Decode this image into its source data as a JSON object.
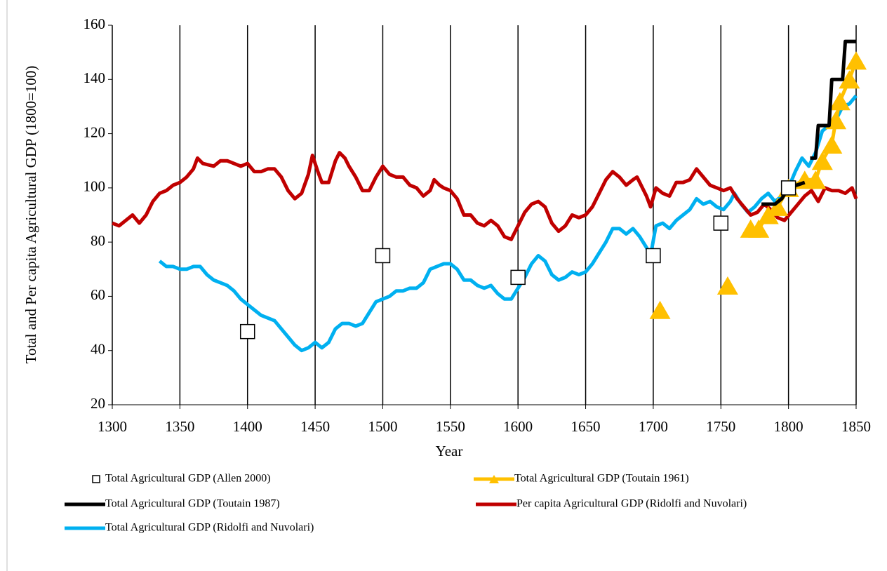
{
  "chart_data": {
    "type": "line",
    "x_label": "Year",
    "y_label": "Total and Per capita Agricultural GDP (1800=100)",
    "xlim": [
      1300,
      1850
    ],
    "xticks": [
      1300,
      1350,
      1400,
      1450,
      1500,
      1550,
      1600,
      1650,
      1700,
      1750,
      1800,
      1850
    ],
    "ylim": [
      20,
      160
    ],
    "yticks": [
      20,
      40,
      60,
      80,
      100,
      120,
      140,
      160
    ],
    "grid": "x",
    "legend": "bottom",
    "series": [
      {
        "name": "Total Agricultural GDP (Allen 2000)",
        "color": "#000000",
        "marker": "square",
        "line": false,
        "x": [
          1400,
          1500,
          1600,
          1700,
          1750,
          1800
        ],
        "values": [
          47,
          75,
          67,
          75,
          87,
          100
        ]
      },
      {
        "name": "Total Agricultural GDP (Toutain 1961)",
        "color": "#ffc000",
        "marker": "triangle",
        "line": true,
        "x": [
          1705,
          1730,
          1755,
          1765,
          1772,
          1778,
          1785,
          1792,
          1800,
          1812,
          1820,
          1825,
          1832,
          1835,
          1838,
          1845,
          1850
        ],
        "values": [
          55,
          null,
          64,
          null,
          85,
          85,
          90,
          93,
          100,
          103,
          103,
          110,
          116,
          125,
          132,
          140,
          147
        ]
      },
      {
        "name": "Total Agricultural GDP (Toutain 1987)",
        "color": "#000000",
        "marker": "none",
        "line": true,
        "x": [
          1780,
          1790,
          1795,
          1800,
          1812,
          1814,
          1816,
          1820,
          1822,
          1830,
          1832,
          1840,
          1842,
          1850
        ],
        "values": [
          94,
          94,
          96,
          100,
          102,
          null,
          111,
          111,
          123,
          123,
          140,
          140,
          154,
          154
        ]
      },
      {
        "name": "Per capita Agricultural GDP (Ridolfi and Nuvolari)",
        "color": "#c00000",
        "marker": "none",
        "line": true,
        "x": [
          1300,
          1305,
          1310,
          1315,
          1320,
          1325,
          1330,
          1335,
          1340,
          1345,
          1350,
          1355,
          1360,
          1363,
          1367,
          1375,
          1380,
          1385,
          1390,
          1395,
          1400,
          1405,
          1410,
          1415,
          1420,
          1425,
          1430,
          1435,
          1440,
          1445,
          1448,
          1452,
          1455,
          1460,
          1465,
          1468,
          1472,
          1475,
          1480,
          1485,
          1490,
          1495,
          1500,
          1505,
          1510,
          1515,
          1520,
          1525,
          1530,
          1535,
          1538,
          1542,
          1545,
          1550,
          1555,
          1560,
          1565,
          1570,
          1575,
          1580,
          1585,
          1590,
          1595,
          1600,
          1605,
          1610,
          1615,
          1620,
          1625,
          1630,
          1635,
          1640,
          1645,
          1650,
          1655,
          1660,
          1665,
          1670,
          1675,
          1680,
          1685,
          1688,
          1692,
          1695,
          1698,
          1702,
          1707,
          1712,
          1717,
          1722,
          1727,
          1732,
          1737,
          1742,
          1747,
          1752,
          1757,
          1762,
          1767,
          1772,
          1777,
          1782,
          1787,
          1792,
          1797,
          1802,
          1807,
          1812,
          1817,
          1822,
          1827,
          1832,
          1837,
          1842,
          1847,
          1850
        ],
        "values": [
          87,
          86,
          88,
          90,
          87,
          90,
          95,
          98,
          99,
          101,
          102,
          104,
          107,
          111,
          109,
          108,
          110,
          110,
          109,
          108,
          109,
          106,
          106,
          107,
          107,
          104,
          99,
          96,
          98,
          105,
          112,
          106,
          102,
          102,
          110,
          113,
          111,
          108,
          104,
          99,
          99,
          104,
          108,
          105,
          104,
          104,
          101,
          100,
          97,
          99,
          103,
          101,
          100,
          99,
          96,
          90,
          90,
          87,
          86,
          88,
          86,
          82,
          81,
          86,
          91,
          94,
          95,
          93,
          87,
          84,
          86,
          90,
          89,
          90,
          93,
          98,
          103,
          106,
          104,
          101,
          103,
          104,
          100,
          97,
          93,
          100,
          98,
          97,
          102,
          102,
          103,
          107,
          104,
          101,
          100,
          99,
          100,
          96,
          93,
          90,
          91,
          94,
          92,
          89,
          88,
          91,
          94,
          97,
          99,
          95,
          100,
          99,
          99,
          98,
          100,
          96
        ]
      },
      {
        "name": "Total Agricultural GDP (Ridolfi and Nuvolari)",
        "color": "#00b0f0",
        "marker": "none",
        "line": true,
        "x": [
          1335,
          1340,
          1345,
          1350,
          1355,
          1360,
          1365,
          1370,
          1375,
          1380,
          1385,
          1390,
          1395,
          1400,
          1405,
          1410,
          1415,
          1420,
          1425,
          1430,
          1435,
          1440,
          1445,
          1450,
          1455,
          1460,
          1465,
          1470,
          1475,
          1480,
          1485,
          1490,
          1495,
          1500,
          1505,
          1510,
          1515,
          1520,
          1525,
          1530,
          1535,
          1540,
          1545,
          1550,
          1555,
          1560,
          1565,
          1570,
          1575,
          1580,
          1585,
          1590,
          1595,
          1600,
          1605,
          1610,
          1615,
          1620,
          1625,
          1630,
          1635,
          1640,
          1645,
          1650,
          1655,
          1660,
          1665,
          1670,
          1675,
          1680,
          1685,
          1690,
          1695,
          1698,
          1702,
          1707,
          1712,
          1717,
          1722,
          1727,
          1732,
          1737,
          1742,
          1747,
          1752,
          1757,
          1760,
          1765,
          1770,
          1775,
          1780,
          1785,
          1790,
          1795,
          1800,
          1805,
          1810,
          1815,
          1820,
          1825,
          1830,
          1835,
          1840,
          1845,
          1850
        ],
        "values": [
          73,
          71,
          71,
          70,
          70,
          71,
          71,
          68,
          66,
          65,
          64,
          62,
          59,
          57,
          55,
          53,
          52,
          51,
          48,
          45,
          42,
          40,
          41,
          43,
          41,
          43,
          48,
          50,
          50,
          49,
          50,
          54,
          58,
          59,
          60,
          62,
          62,
          63,
          63,
          65,
          70,
          71,
          72,
          72,
          70,
          66,
          66,
          64,
          63,
          64,
          61,
          59,
          59,
          63,
          67,
          72,
          75,
          73,
          68,
          66,
          67,
          69,
          68,
          69,
          72,
          76,
          80,
          85,
          85,
          83,
          85,
          82,
          78,
          75,
          86,
          87,
          85,
          88,
          90,
          92,
          96,
          94,
          95,
          93,
          92,
          95,
          98,
          94,
          91,
          93,
          96,
          98,
          95,
          97,
          100,
          106,
          111,
          108,
          113,
          121,
          123,
          125,
          130,
          131,
          134
        ]
      }
    ]
  }
}
